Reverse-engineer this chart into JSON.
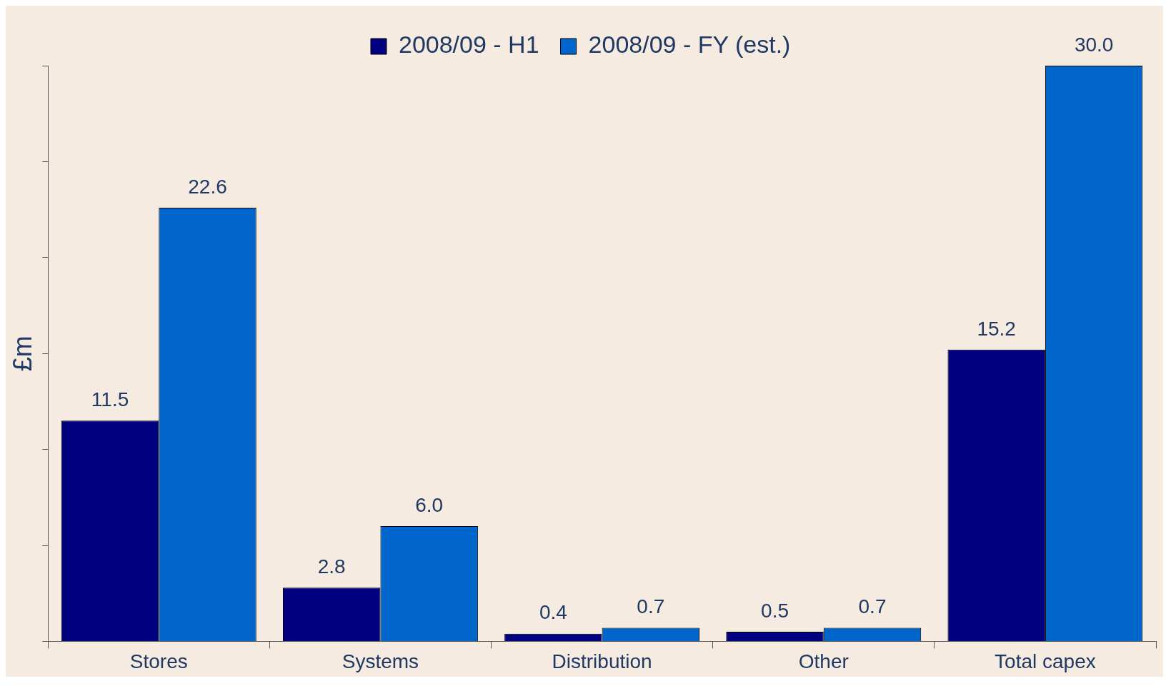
{
  "chart_data": {
    "type": "bar",
    "ylabel": "£m",
    "categories": [
      "Stores",
      "Systems",
      "Distribution",
      "Other",
      "Total capex"
    ],
    "series": [
      {
        "name": "2008/09 - H1",
        "color": "#000080",
        "values": [
          11.5,
          2.8,
          0.4,
          0.5,
          15.2
        ],
        "value_labels": [
          "11.5",
          "2.8",
          "0.4",
          "0.5",
          "15.2"
        ]
      },
      {
        "name": "2008/09 - FY (est.)",
        "color": "#0066cc",
        "values": [
          22.6,
          6.0,
          0.7,
          0.7,
          30.0
        ],
        "value_labels": [
          "22.6",
          "6.0",
          "0.7",
          "0.7",
          "30.0"
        ]
      }
    ],
    "tick_labels": "x",
    "grid": false,
    "legend": "top"
  }
}
